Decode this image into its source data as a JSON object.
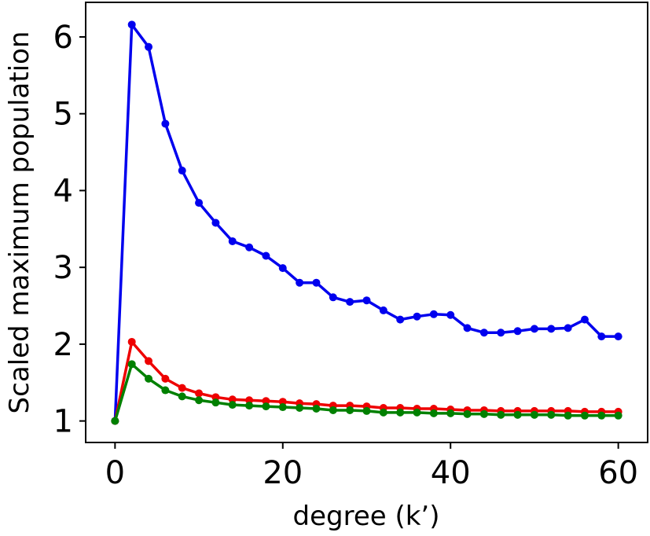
{
  "chart_data": {
    "type": "line",
    "xlabel": "degree (k’)",
    "ylabel": "Scaled maximum population",
    "xlim": [
      -3.5,
      63.5
    ],
    "ylim": [
      0.72,
      6.45
    ],
    "xticks": [
      0,
      20,
      40,
      60
    ],
    "yticks": [
      1,
      2,
      3,
      4,
      5,
      6
    ],
    "grid": false,
    "x": [
      0,
      2,
      4,
      6,
      8,
      10,
      12,
      14,
      16,
      18,
      20,
      22,
      24,
      26,
      28,
      30,
      32,
      34,
      36,
      38,
      40,
      42,
      44,
      46,
      48,
      50,
      52,
      54,
      56,
      58,
      60
    ],
    "series": [
      {
        "color": "#0000ee",
        "values": [
          1.0,
          6.16,
          5.87,
          4.87,
          4.26,
          3.84,
          3.58,
          3.34,
          3.26,
          3.15,
          2.99,
          2.8,
          2.8,
          2.61,
          2.55,
          2.57,
          2.44,
          2.32,
          2.36,
          2.39,
          2.38,
          2.21,
          2.15,
          2.15,
          2.17,
          2.2,
          2.2,
          2.21,
          2.32,
          2.1,
          2.1
        ]
      },
      {
        "color": "#ee0000",
        "values": [
          1.0,
          2.03,
          1.78,
          1.55,
          1.43,
          1.36,
          1.31,
          1.28,
          1.27,
          1.26,
          1.25,
          1.23,
          1.22,
          1.2,
          1.2,
          1.19,
          1.17,
          1.17,
          1.16,
          1.16,
          1.15,
          1.14,
          1.14,
          1.13,
          1.13,
          1.13,
          1.13,
          1.13,
          1.12,
          1.12,
          1.12
        ]
      },
      {
        "color": "#008000",
        "values": [
          1.0,
          1.74,
          1.55,
          1.4,
          1.32,
          1.27,
          1.24,
          1.21,
          1.2,
          1.19,
          1.18,
          1.17,
          1.16,
          1.14,
          1.14,
          1.13,
          1.11,
          1.11,
          1.11,
          1.1,
          1.1,
          1.09,
          1.09,
          1.08,
          1.08,
          1.08,
          1.08,
          1.07,
          1.07,
          1.07,
          1.07
        ]
      }
    ]
  }
}
